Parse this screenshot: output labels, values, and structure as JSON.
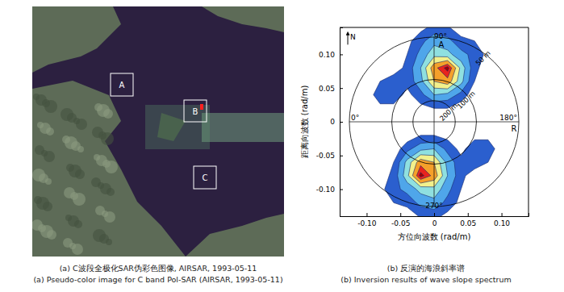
{
  "chart_data": [
    {
      "type": "image",
      "caption": [
        "(a) C波段全极化SAR伪彩色图像, AIRSAR, 1993-05-11",
        "(a) Pseudo-color image for C band Pol-SAR (AIRSAR, 1993-05-11)"
      ],
      "regions": [
        "A",
        "B",
        "C"
      ]
    },
    {
      "type": "contour",
      "caption": [
        "(b) 反演的海浪斜率谱",
        "(b) Inversion results of wave slope spectrum"
      ],
      "x_label": "方位向波数 (rad/m)",
      "y_label": "距离向波数 (rad/m)",
      "xlim": [
        -0.14,
        0.14
      ],
      "ylim": [
        -0.14,
        0.14
      ],
      "xticks": [
        {
          "value": -0.1,
          "label": "-0.10"
        },
        -0.05,
        0,
        0.05,
        {
          "value": 0.1,
          "label": "0.10"
        }
      ],
      "yticks": [
        {
          "value": -0.1,
          "label": "-0.10"
        },
        -0.05,
        0,
        0.05,
        {
          "value": 0.1,
          "label": "0.10"
        }
      ],
      "x": [
        -0.14,
        -0.12,
        -0.1,
        -0.08,
        -0.06,
        -0.04,
        -0.02,
        0,
        0.02,
        0.04,
        0.06,
        0.08,
        0.1,
        0.12,
        0.14
      ],
      "y": [
        -0.14,
        -0.12,
        -0.1,
        -0.08,
        -0.06,
        -0.04,
        -0.02,
        0,
        0.02,
        0.04,
        0.06,
        0.08,
        0.1,
        0.12,
        0.14
      ],
      "z": [
        [
          0,
          0,
          0,
          0,
          0,
          0,
          0.12,
          0.15,
          0.05,
          0,
          0,
          0,
          0,
          0,
          0
        ],
        [
          0,
          0,
          0,
          0.05,
          0.1,
          0.15,
          0.3,
          0.35,
          0.2,
          0.05,
          0,
          0,
          0,
          0,
          0
        ],
        [
          0,
          0,
          0,
          0.05,
          0.2,
          0.3,
          0.45,
          0.5,
          0.3,
          0.1,
          0,
          0,
          0,
          0,
          0
        ],
        [
          0,
          0,
          0,
          0,
          0.15,
          0.5,
          1.0,
          0.8,
          0.4,
          0.15,
          0,
          0,
          0,
          0,
          0
        ],
        [
          0,
          0,
          0,
          0,
          0.1,
          0.45,
          0.8,
          0.7,
          0.35,
          0.15,
          0.2,
          0.1,
          0,
          0,
          0
        ],
        [
          0,
          0,
          0,
          0,
          0,
          0.2,
          0.35,
          0.4,
          0.2,
          0.05,
          0.2,
          0.2,
          0,
          0,
          0
        ],
        [
          0,
          0,
          0,
          0,
          0,
          0,
          0.1,
          0.1,
          0.05,
          0,
          0.05,
          0.05,
          0,
          0,
          0
        ],
        [
          0,
          0,
          0,
          0,
          0,
          0,
          0,
          0,
          0,
          0,
          0,
          0,
          0,
          0,
          0
        ],
        [
          0,
          0,
          0,
          0.05,
          0.05,
          0,
          0.05,
          0.1,
          0.1,
          0,
          0,
          0,
          0,
          0,
          0
        ],
        [
          0,
          0,
          0,
          0.2,
          0.2,
          0.05,
          0.2,
          0.4,
          0.35,
          0.2,
          0,
          0,
          0,
          0,
          0
        ],
        [
          0,
          0,
          0,
          0.1,
          0.2,
          0.15,
          0.35,
          0.7,
          0.8,
          0.45,
          0.1,
          0,
          0,
          0,
          0
        ],
        [
          0,
          0,
          0,
          0,
          0,
          0.15,
          0.4,
          0.8,
          1.0,
          0.5,
          0.15,
          0,
          0,
          0,
          0
        ],
        [
          0,
          0,
          0,
          0,
          0,
          0.1,
          0.3,
          0.5,
          0.45,
          0.3,
          0.2,
          0.05,
          0,
          0,
          0
        ],
        [
          0,
          0,
          0,
          0,
          0,
          0.05,
          0.2,
          0.35,
          0.3,
          0.15,
          0.1,
          0.05,
          0,
          0,
          0
        ],
        [
          0,
          0,
          0,
          0,
          0,
          0,
          0.05,
          0.15,
          0.12,
          0,
          0,
          0,
          0,
          0,
          0
        ]
      ],
      "levels": [
        0.1,
        0.25,
        0.4,
        0.55,
        0.7,
        0.85,
        0.95
      ],
      "colors": [
        "#2b5fce",
        "#4fa6ea",
        "#8fe0e0",
        "#f2f08c",
        "#f5a02a",
        "#e8231e",
        "#a00000"
      ],
      "rings": [
        {
          "value": 0.1257,
          "label": "50 m"
        },
        {
          "value": 0.0628,
          "label": "100 m"
        },
        {
          "value": 0.0314,
          "label": "200 m"
        }
      ],
      "angle_labels": [
        "0°",
        "90°",
        "180°",
        "270°"
      ],
      "north": "N",
      "azimuth": "A",
      "range": "R"
    }
  ]
}
